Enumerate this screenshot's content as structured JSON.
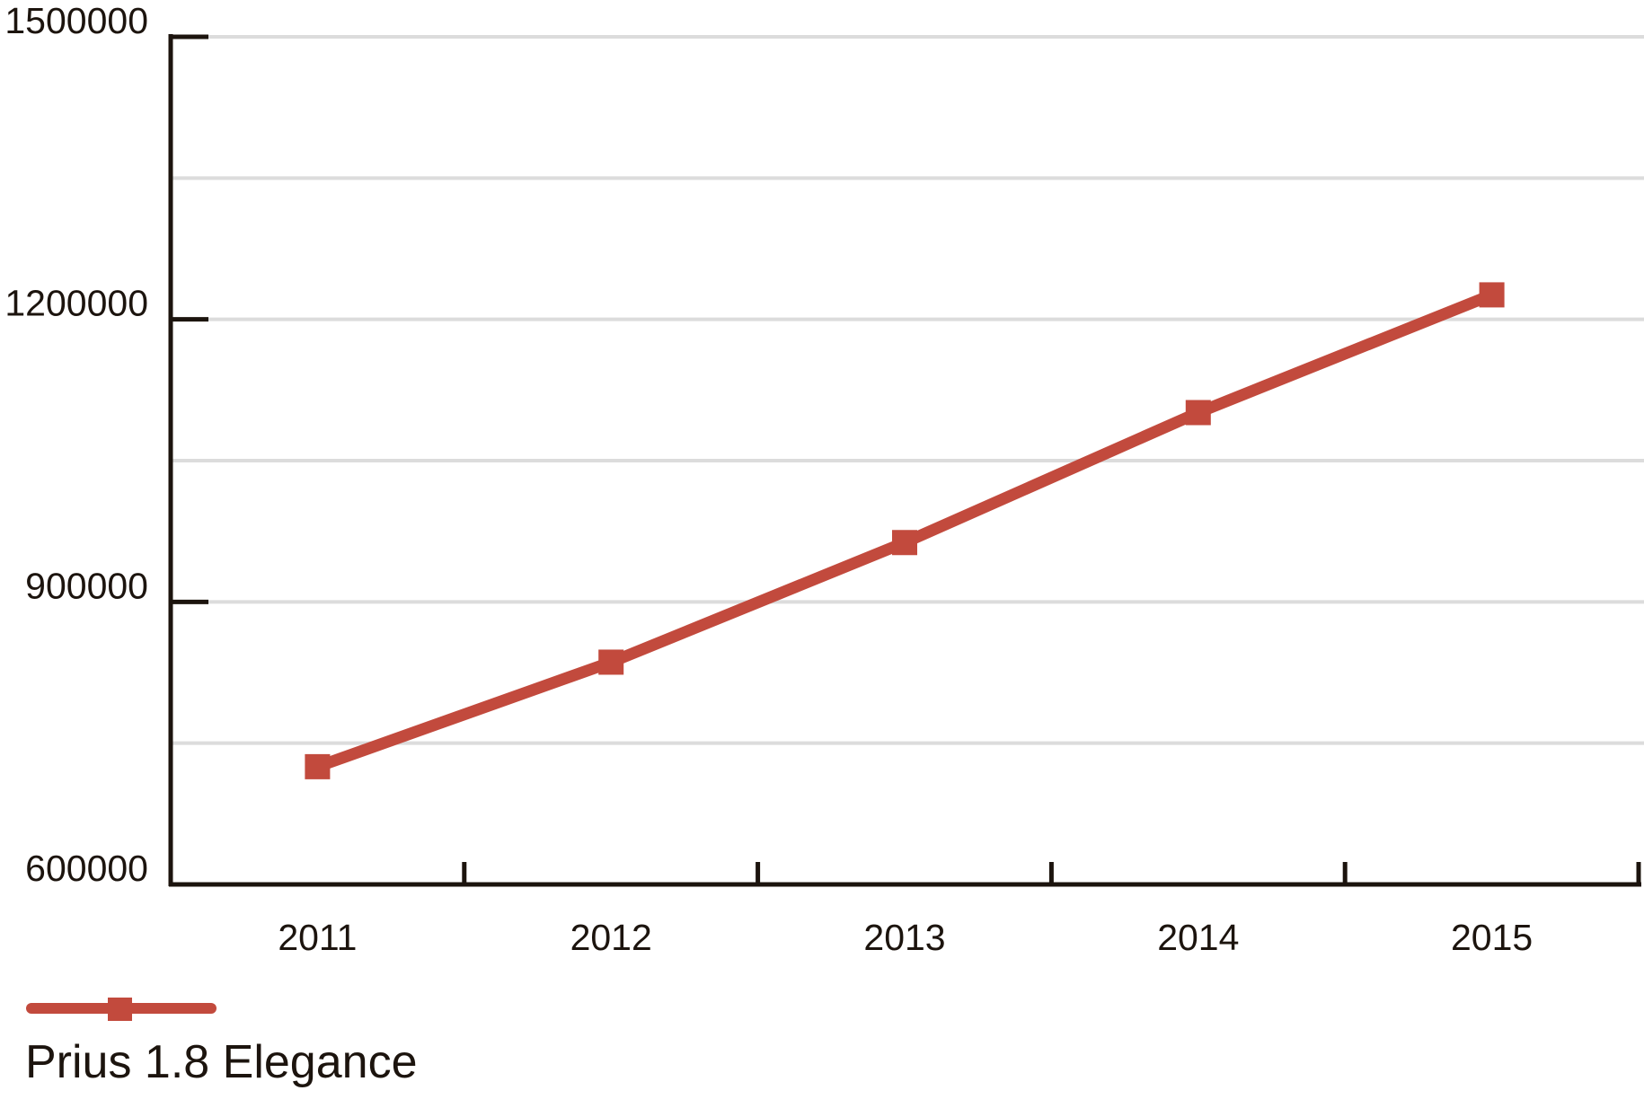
{
  "chart_data": {
    "type": "line",
    "title": "",
    "xlabel": "",
    "ylabel": "",
    "categories": [
      "2011",
      "2012",
      "2013",
      "2014",
      "2015"
    ],
    "series": [
      {
        "name": "Prius 1.8 Elegance",
        "values": [
          725000,
          836000,
          963000,
          1101000,
          1226000
        ],
        "marker": "square"
      }
    ],
    "ylim": [
      600000,
      1500000
    ],
    "ytick_values": [
      600000,
      900000,
      1200000,
      1500000
    ],
    "ytick_labels": [
      "600000",
      "900000",
      "1200000",
      "1500000"
    ],
    "gridline_step": 150000,
    "grid": true,
    "legend_position": "bottom-left",
    "colors": {
      "series": "#c24a3d",
      "gridline": "#dcdcdc",
      "axis": "#1c140e",
      "text": "#1c140e",
      "background": "#ffffff"
    }
  }
}
